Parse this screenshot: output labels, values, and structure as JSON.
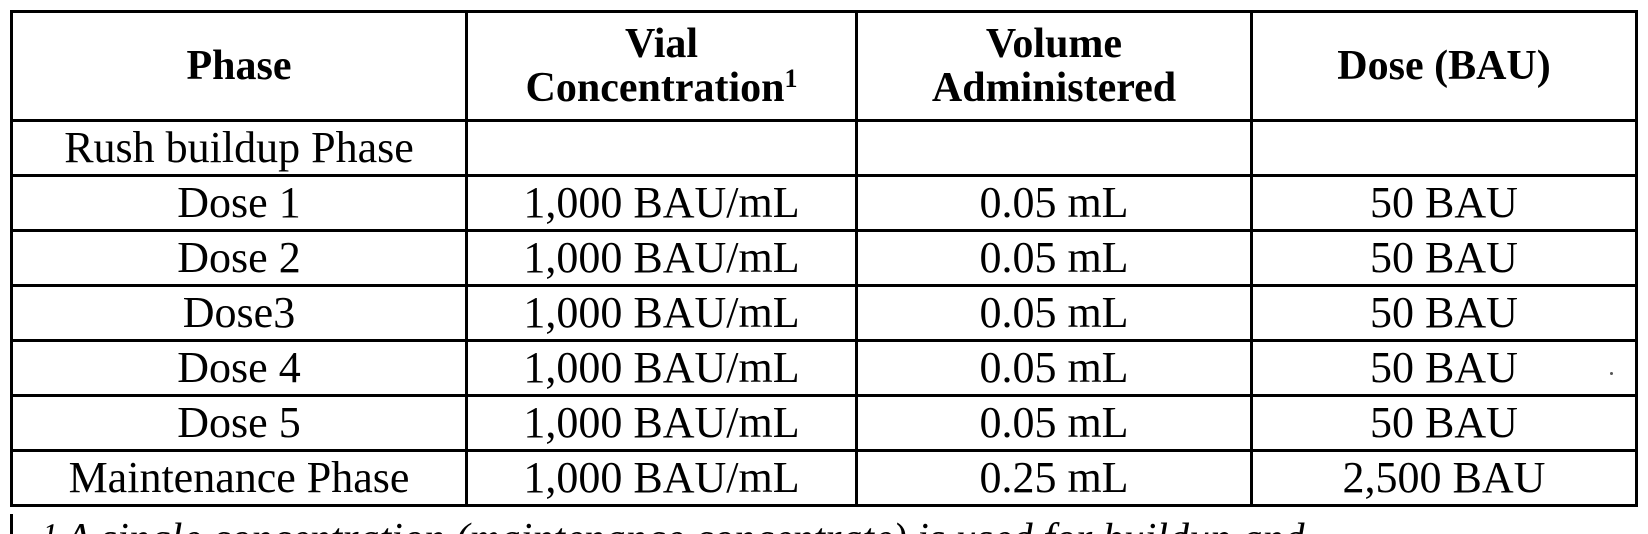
{
  "table": {
    "headers": {
      "phase": "Phase",
      "conc_line1": "Vial",
      "conc_line2": "Concentration",
      "conc_sup": "1",
      "vol_line1": "Volume",
      "vol_line2": "Administered",
      "dose": "Dose (BAU)"
    },
    "rows": [
      {
        "phase": "Rush buildup Phase",
        "conc": "",
        "vol": "",
        "dose": ""
      },
      {
        "phase": "Dose 1",
        "conc": "1,000 BAU/mL",
        "vol": "0.05 mL",
        "dose": "50 BAU"
      },
      {
        "phase": "Dose 2",
        "conc": "1,000 BAU/mL",
        "vol": "0.05 mL",
        "dose": "50 BAU"
      },
      {
        "phase": "Dose3",
        "conc": "1,000 BAU/mL",
        "vol": "0.05 mL",
        "dose": "50 BAU"
      },
      {
        "phase": "Dose 4",
        "conc": "1,000 BAU/mL",
        "vol": "0.05 mL",
        "dose": "50 BAU"
      },
      {
        "phase": "Dose 5",
        "conc": "1,000 BAU/mL",
        "vol": "0.05 mL",
        "dose": "50 BAU"
      },
      {
        "phase": "Maintenance Phase",
        "conc": "1,000 BAU/mL",
        "vol": "0.25 mL",
        "dose": "2,500 BAU"
      }
    ]
  },
  "footnote": {
    "partial_text": "¹ A single concentration (maintenance concentrate) is used for buildup and"
  }
}
